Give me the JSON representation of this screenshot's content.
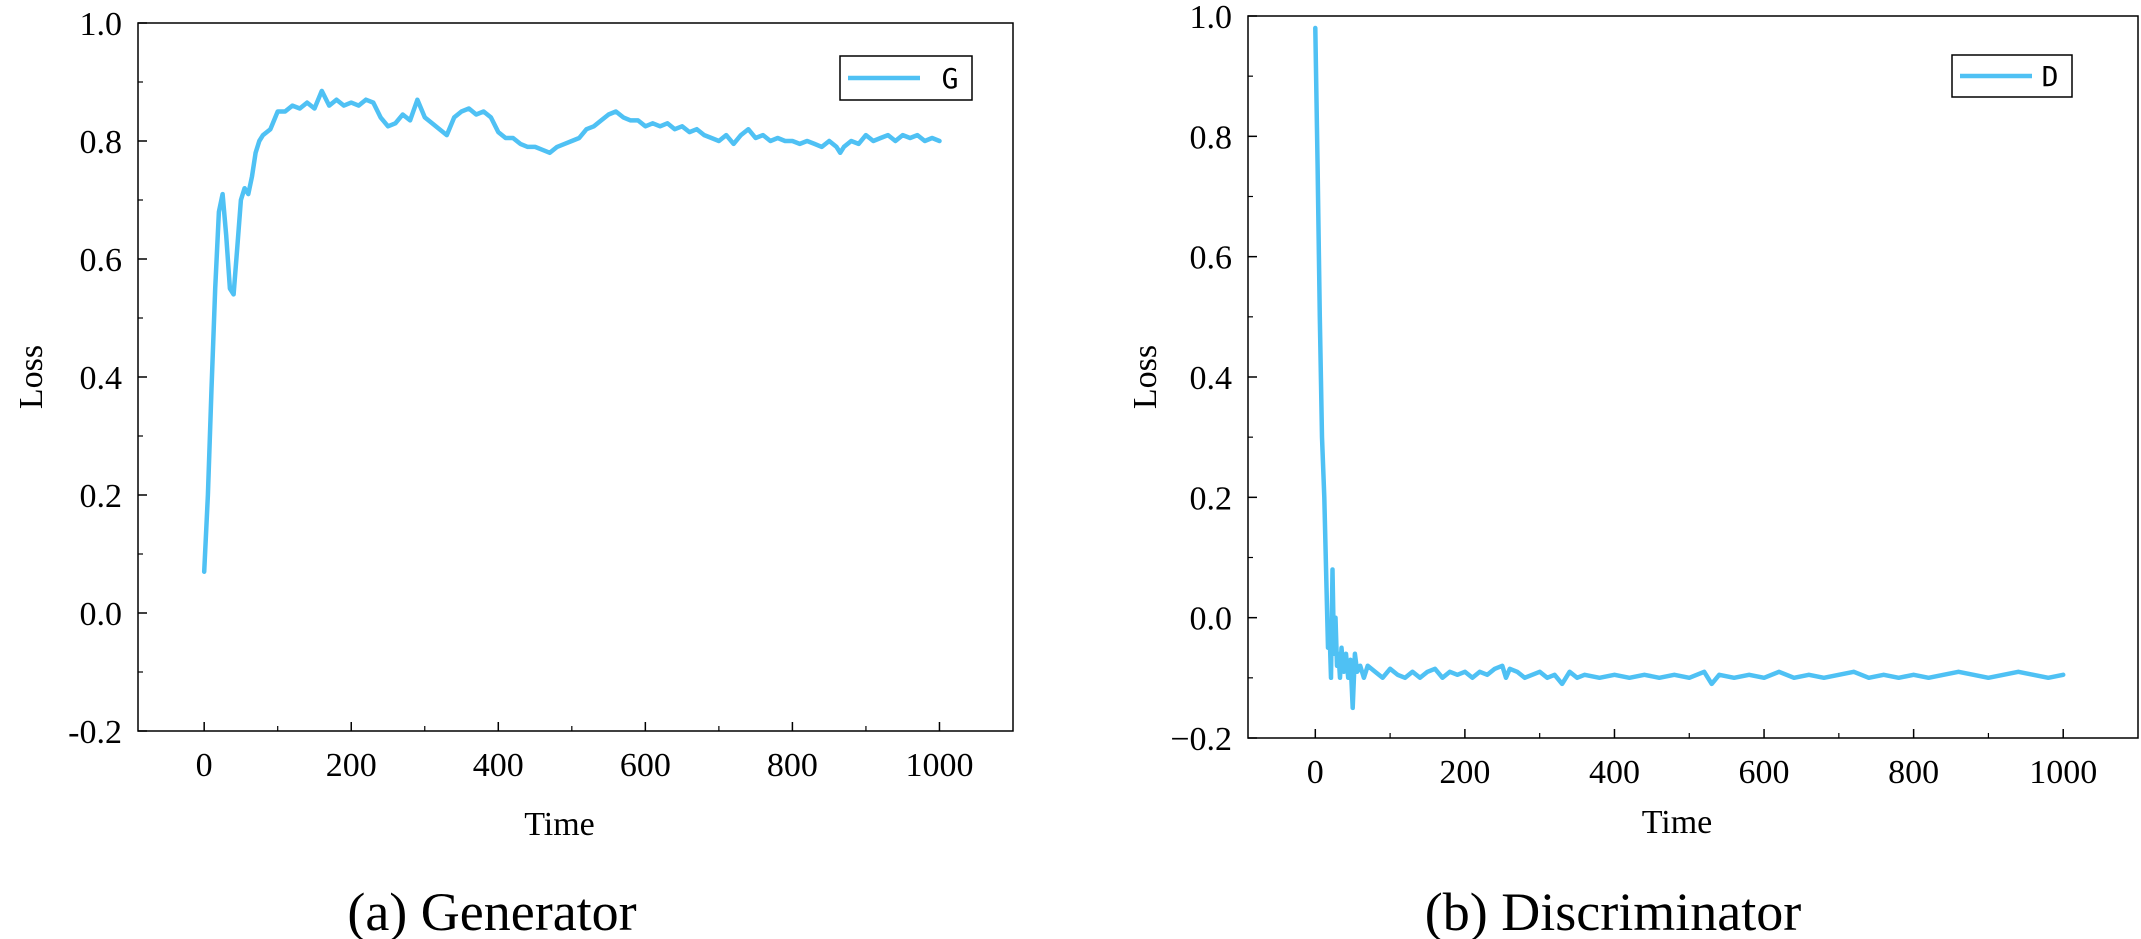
{
  "chart_data": [
    {
      "type": "line",
      "caption": "(a) Generator",
      "xlabel": "Time",
      "ylabel": "Loss",
      "xlim": [
        -90,
        1100
      ],
      "ylim": [
        -0.2,
        1.0
      ],
      "xticks": [
        0,
        200,
        400,
        600,
        800,
        1000
      ],
      "yticks": [
        -0.2,
        0.0,
        0.2,
        0.4,
        0.6,
        0.8,
        1.0
      ],
      "xtick_labels": [
        "0",
        "200",
        "400",
        "600",
        "800",
        "1000"
      ],
      "ytick_labels": [
        "-0.2",
        "0.0",
        "0.2",
        "0.4",
        "0.6",
        "0.8",
        "1.0"
      ],
      "legend_position": "top-right",
      "color": "#4FC1F4",
      "series": [
        {
          "name": "G",
          "x": [
            0,
            5,
            10,
            15,
            20,
            25,
            30,
            35,
            40,
            45,
            50,
            55,
            60,
            65,
            70,
            75,
            80,
            90,
            100,
            110,
            120,
            130,
            140,
            150,
            160,
            170,
            180,
            190,
            200,
            210,
            220,
            230,
            240,
            250,
            260,
            270,
            280,
            290,
            300,
            310,
            320,
            330,
            340,
            350,
            360,
            370,
            380,
            390,
            400,
            410,
            420,
            430,
            440,
            450,
            460,
            470,
            480,
            490,
            500,
            510,
            520,
            530,
            540,
            550,
            560,
            570,
            580,
            590,
            600,
            610,
            620,
            630,
            640,
            650,
            660,
            670,
            680,
            690,
            700,
            710,
            720,
            730,
            740,
            750,
            760,
            770,
            780,
            790,
            800,
            810,
            820,
            830,
            840,
            850,
            860,
            865,
            870,
            880,
            890,
            900,
            910,
            920,
            930,
            940,
            950,
            960,
            970,
            980,
            990,
            1000
          ],
          "values": [
            0.07,
            0.2,
            0.38,
            0.55,
            0.68,
            0.71,
            0.64,
            0.55,
            0.54,
            0.62,
            0.7,
            0.72,
            0.71,
            0.74,
            0.78,
            0.8,
            0.81,
            0.82,
            0.85,
            0.85,
            0.86,
            0.855,
            0.865,
            0.855,
            0.885,
            0.86,
            0.87,
            0.86,
            0.865,
            0.86,
            0.87,
            0.865,
            0.84,
            0.825,
            0.83,
            0.845,
            0.835,
            0.87,
            0.84,
            0.83,
            0.82,
            0.81,
            0.84,
            0.85,
            0.855,
            0.845,
            0.85,
            0.84,
            0.815,
            0.805,
            0.805,
            0.795,
            0.79,
            0.79,
            0.785,
            0.78,
            0.79,
            0.795,
            0.8,
            0.805,
            0.82,
            0.825,
            0.835,
            0.845,
            0.85,
            0.84,
            0.835,
            0.835,
            0.825,
            0.83,
            0.825,
            0.83,
            0.82,
            0.825,
            0.815,
            0.82,
            0.81,
            0.805,
            0.8,
            0.81,
            0.795,
            0.81,
            0.82,
            0.805,
            0.81,
            0.8,
            0.805,
            0.8,
            0.8,
            0.795,
            0.8,
            0.795,
            0.79,
            0.8,
            0.79,
            0.78,
            0.79,
            0.8,
            0.795,
            0.81,
            0.8,
            0.805,
            0.81,
            0.8,
            0.81,
            0.805,
            0.81,
            0.8,
            0.805,
            0.8
          ]
        }
      ]
    },
    {
      "type": "line",
      "caption": "(b) Discriminator",
      "xlabel": "Time",
      "ylabel": "Loss",
      "xlim": [
        -90,
        1100
      ],
      "ylim": [
        -0.2,
        1.0
      ],
      "xticks": [
        0,
        200,
        400,
        600,
        800,
        1000
      ],
      "yticks": [
        -0.2,
        0.0,
        0.2,
        0.4,
        0.6,
        0.8,
        1.0
      ],
      "xtick_labels": [
        "0",
        "200",
        "400",
        "600",
        "800",
        "1000"
      ],
      "ytick_labels": [
        "−0.2",
        "0.0",
        "0.2",
        "0.4",
        "0.6",
        "0.8",
        "1.0"
      ],
      "legend_position": "top-right",
      "color": "#4FC1F4",
      "series": [
        {
          "name": "D",
          "x": [
            0,
            3,
            6,
            9,
            12,
            15,
            17,
            19,
            21,
            23,
            25,
            27,
            29,
            31,
            33,
            35,
            38,
            41,
            44,
            47,
            50,
            53,
            56,
            60,
            65,
            70,
            80,
            90,
            100,
            110,
            120,
            130,
            140,
            150,
            160,
            170,
            180,
            190,
            200,
            210,
            220,
            230,
            240,
            250,
            255,
            260,
            270,
            280,
            290,
            300,
            310,
            320,
            330,
            340,
            350,
            360,
            380,
            400,
            420,
            440,
            460,
            480,
            500,
            520,
            530,
            540,
            560,
            580,
            600,
            620,
            640,
            660,
            680,
            700,
            720,
            740,
            760,
            780,
            800,
            820,
            840,
            860,
            880,
            900,
            920,
            940,
            960,
            980,
            1000
          ],
          "values": [
            0.98,
            0.75,
            0.5,
            0.3,
            0.2,
            0.05,
            -0.05,
            -0.02,
            -0.1,
            0.08,
            -0.06,
            0.0,
            -0.08,
            -0.06,
            -0.1,
            -0.05,
            -0.09,
            -0.06,
            -0.1,
            -0.07,
            -0.15,
            -0.06,
            -0.09,
            -0.08,
            -0.1,
            -0.08,
            -0.09,
            -0.1,
            -0.085,
            -0.095,
            -0.1,
            -0.09,
            -0.1,
            -0.09,
            -0.085,
            -0.1,
            -0.09,
            -0.095,
            -0.09,
            -0.1,
            -0.09,
            -0.095,
            -0.085,
            -0.08,
            -0.1,
            -0.085,
            -0.09,
            -0.1,
            -0.095,
            -0.09,
            -0.1,
            -0.095,
            -0.11,
            -0.09,
            -0.1,
            -0.095,
            -0.1,
            -0.095,
            -0.1,
            -0.095,
            -0.1,
            -0.095,
            -0.1,
            -0.09,
            -0.11,
            -0.095,
            -0.1,
            -0.095,
            -0.1,
            -0.09,
            -0.1,
            -0.095,
            -0.1,
            -0.095,
            -0.09,
            -0.1,
            -0.095,
            -0.1,
            -0.095,
            -0.1,
            -0.095,
            -0.09,
            -0.095,
            -0.1,
            -0.095,
            -0.09,
            -0.095,
            -0.1,
            -0.095
          ]
        }
      ]
    }
  ]
}
